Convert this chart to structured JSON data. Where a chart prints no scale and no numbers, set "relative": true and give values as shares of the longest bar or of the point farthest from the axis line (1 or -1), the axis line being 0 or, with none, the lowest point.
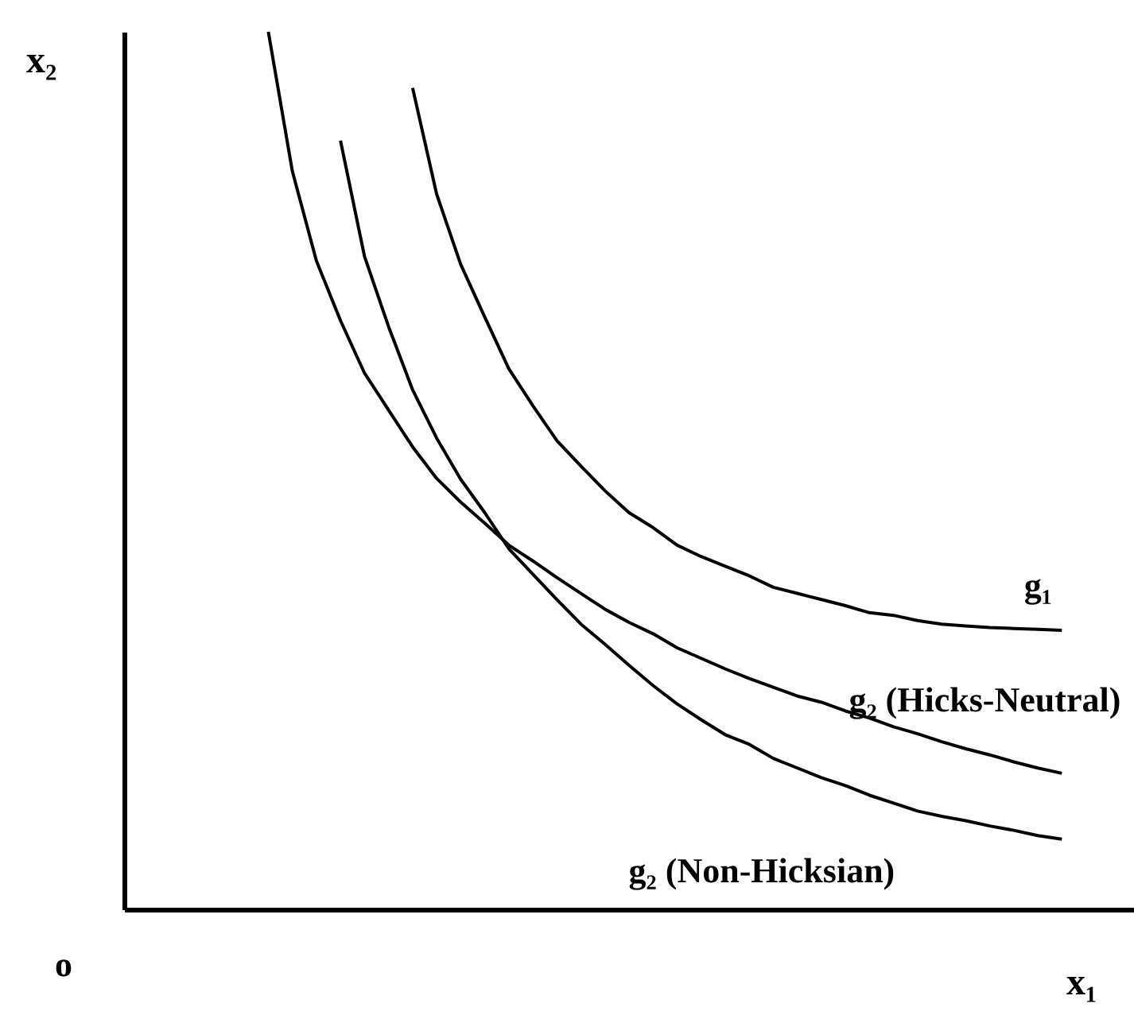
{
  "chart_data": {
    "type": "line",
    "relative": true,
    "xlabel": "x₁",
    "ylabel": "x₂",
    "annotations": [
      "o"
    ],
    "categories": [
      null,
      null,
      null,
      null,
      null,
      null,
      null,
      null,
      null,
      null,
      null,
      null,
      null,
      null,
      null,
      null,
      null,
      null,
      null,
      null,
      null,
      null,
      null,
      null,
      null,
      null,
      null,
      null,
      null,
      null,
      null,
      null,
      null,
      null,
      null,
      null,
      null,
      null,
      null,
      null,
      null,
      null,
      null
    ],
    "series": [
      {
        "name": "g₁",
        "color": "#000000",
        "values": [
          null,
          null,
          null,
          null,
          null,
          null,
          null,
          null,
          null,
          null,
          null,
          null,
          0.936,
          0.815,
          0.735,
          0.675,
          0.616,
          0.574,
          0.534,
          0.505,
          0.477,
          0.452,
          0.435,
          0.415,
          0.402,
          0.391,
          0.38,
          0.367,
          0.36,
          0.353,
          0.346,
          0.338,
          0.335,
          0.329,
          0.325,
          0.323,
          0.321,
          0.32,
          0.319,
          0.318,
          null,
          null,
          null
        ]
      },
      {
        "name": "g₂ (Hicks-Neutral)",
        "color": "#000000",
        "values": [
          null,
          null,
          null,
          null,
          null,
          null,
          1.0,
          0.841,
          0.739,
          0.671,
          0.611,
          0.569,
          0.527,
          0.491,
          0.464,
          0.44,
          0.415,
          0.397,
          0.378,
          0.36,
          0.342,
          0.327,
          0.314,
          0.298,
          0.286,
          0.274,
          0.263,
          0.253,
          0.243,
          0.236,
          0.226,
          0.218,
          0.208,
          0.2,
          0.191,
          0.183,
          0.176,
          0.168,
          0.161,
          0.155,
          null,
          null,
          null
        ]
      },
      {
        "name": "g₂ (Non-Hicksian)",
        "color": "#000000",
        "values": [
          null,
          null,
          null,
          null,
          null,
          null,
          null,
          null,
          null,
          0.876,
          0.744,
          0.664,
          0.592,
          0.537,
          0.49,
          0.452,
          0.411,
          0.382,
          0.353,
          0.325,
          0.302,
          0.278,
          0.255,
          0.234,
          0.216,
          0.199,
          0.188,
          0.172,
          0.161,
          0.15,
          0.141,
          0.13,
          0.121,
          0.112,
          0.106,
          0.101,
          0.095,
          0.09,
          0.084,
          0.08,
          null,
          null,
          null
        ]
      }
    ]
  }
}
